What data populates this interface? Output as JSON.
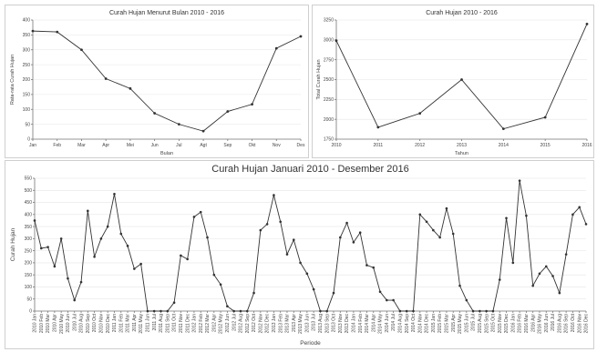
{
  "chart_data": [
    {
      "type": "line",
      "title": "Curah Hujan Menurut Bulan 2010 - 2016",
      "xlabel": "Bulan",
      "ylabel": "Rata-rata Curah Hujan",
      "categories": [
        "Jan",
        "Feb",
        "Mar",
        "Apr",
        "Mei",
        "Jun",
        "Jul",
        "Agt",
        "Sep",
        "Okt",
        "Nov",
        "Des"
      ],
      "values": [
        363,
        360,
        300,
        203,
        170,
        87,
        50,
        27,
        93,
        117,
        305,
        345
      ],
      "yticks": [
        0,
        50,
        100,
        150,
        200,
        250,
        300,
        350,
        400
      ],
      "ylim": [
        0,
        400
      ],
      "color": "#333333"
    },
    {
      "type": "line",
      "title": "Curah Hujan 2010 - 2016",
      "xlabel": "Tahun",
      "ylabel": "Total Curah Hujan",
      "categories": [
        "2010",
        "2011",
        "2012",
        "2013",
        "2014",
        "2015",
        "2016"
      ],
      "values": [
        2990,
        1900,
        2075,
        2500,
        1880,
        2025,
        3200
      ],
      "yticks": [
        1750,
        2000,
        2250,
        2500,
        2750,
        3000,
        3250
      ],
      "ylim": [
        1750,
        3250
      ],
      "color": "#333333"
    },
    {
      "type": "line",
      "title": "Curah Hujan Januari 2010 - Desember 2016",
      "xlabel": "Periode",
      "ylabel": "Curah Hujan",
      "categories": [
        "2010 Jan",
        "2010 Feb",
        "2010 Mar",
        "2010 Apr",
        "2010 May",
        "2010 Jun",
        "2010 Jul",
        "2010 Aug",
        "2010 Sep",
        "2010 Oct",
        "2010 Nov",
        "2010 Dec",
        "2011 Jan",
        "2011 Feb",
        "2011 Mar",
        "2011 Apr",
        "2011 May",
        "2011 Jun",
        "2011 Jul",
        "2011 Aug",
        "2011 Sep",
        "2011 Oct",
        "2011 Nov",
        "2011 Dec",
        "2012 Jan",
        "2012 Feb",
        "2012 Mar",
        "2012 Apr",
        "2012 May",
        "2012 Jun",
        "2012 Jul",
        "2012 Aug",
        "2012 Sep",
        "2012 Oct",
        "2012 Nov",
        "2012 Dec",
        "2013 Jan",
        "2013 Feb",
        "2013 Mar",
        "2013 Apr",
        "2013 May",
        "2013 Jun",
        "2013 Jul",
        "2013 Aug",
        "2013 Sep",
        "2013 Oct",
        "2013 Nov",
        "2013 Dec",
        "2014 Jan",
        "2014 Feb",
        "2014 Mar",
        "2014 Apr",
        "2014 May",
        "2014 Jun",
        "2014 Jul",
        "2014 Aug",
        "2014 Sep",
        "2014 Oct",
        "2014 Nov",
        "2014 Dec",
        "2015 Jan",
        "2015 Feb",
        "2015 Mar",
        "2015 Apr",
        "2015 May",
        "2015 Jun",
        "2015 Jul",
        "2015 Aug",
        "2015 Sep",
        "2015 Oct",
        "2015 Nov",
        "2015 Dec",
        "2016 Jan",
        "2016 Feb",
        "2016 Mar",
        "2016 Apr",
        "2016 May",
        "2016 Jun",
        "2016 Jul",
        "2016 Aug",
        "2016 Sep",
        "2016 Oct",
        "2016 Nov",
        "2016 Dec"
      ],
      "values": [
        375,
        260,
        265,
        185,
        300,
        135,
        45,
        120,
        415,
        225,
        300,
        350,
        485,
        320,
        270,
        175,
        195,
        0,
        0,
        0,
        0,
        35,
        230,
        215,
        390,
        410,
        305,
        150,
        110,
        20,
        0,
        0,
        0,
        75,
        335,
        360,
        480,
        370,
        235,
        295,
        200,
        155,
        90,
        0,
        0,
        75,
        305,
        365,
        285,
        325,
        190,
        180,
        80,
        45,
        45,
        0,
        0,
        0,
        400,
        370,
        335,
        305,
        425,
        320,
        105,
        45,
        0,
        0,
        0,
        0,
        130,
        385,
        200,
        540,
        395,
        105,
        155,
        185,
        145,
        75,
        235,
        400,
        430,
        360
      ],
      "yticks": [
        0,
        50,
        100,
        150,
        200,
        250,
        300,
        350,
        400,
        450,
        500,
        550
      ],
      "ylim": [
        0,
        550
      ],
      "color": "#333333"
    }
  ]
}
